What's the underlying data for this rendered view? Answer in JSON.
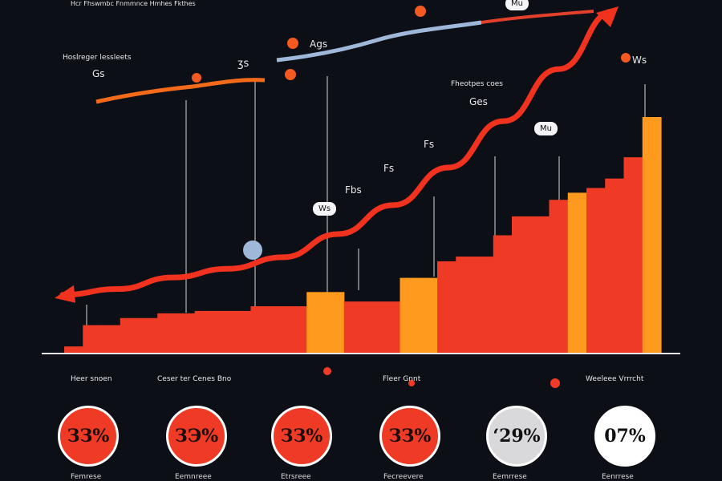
{
  "colors": {
    "background": "#0d0f17",
    "bar_red": "#ef3b26",
    "bar_orange": "#ff9a1f",
    "arrow": "#f0321e",
    "axis": "#e6e6e6"
  },
  "chart_data": {
    "type": "bar",
    "title": "",
    "xlabel": "",
    "ylabel": "",
    "grid": false,
    "legend": "none",
    "ylim": [
      0,
      100
    ],
    "values": [
      3,
      12,
      12,
      15,
      15,
      17,
      17,
      18,
      18,
      18,
      20,
      20,
      20,
      26,
      26,
      22,
      22,
      22,
      32,
      32,
      39,
      41,
      41,
      50,
      58,
      58,
      65,
      68,
      70,
      74,
      83,
      100
    ],
    "bar_colors": [
      "red",
      "red",
      "red",
      "red",
      "red",
      "red",
      "red",
      "red",
      "red",
      "red",
      "red",
      "red",
      "red",
      "orange",
      "orange",
      "red",
      "red",
      "red",
      "orange",
      "orange",
      "red",
      "red",
      "red",
      "red",
      "red",
      "red",
      "red",
      "orange",
      "red",
      "red",
      "red",
      "orange"
    ],
    "trend": {
      "type": "line",
      "values": [
        2,
        4,
        8,
        11,
        15,
        23,
        33,
        46,
        62,
        80,
        100
      ]
    }
  },
  "text": {
    "top_caption": "Hcr Fhswmbc Fnmmnce Hmhes Fkthes",
    "left_caption": "Hoslreger lessleets",
    "right_caption": "Fheotpes coes",
    "label_1": "Gs",
    "label_2": "ʒs",
    "label_3": "Ags",
    "label_4": "Ges",
    "label_5": "Fs",
    "label_6": "Fs",
    "label_7": "Fbs",
    "label_8": "Ws",
    "bubble_1": "Mu",
    "bubble_2": "Ws",
    "bubble_3": "Mu",
    "cat_1": "Heer snoen",
    "cat_2": "Ceser ter Cenes Bno",
    "cat_3": "Fleer Gnnt",
    "cat_4": "Weeleee Vrrrcht",
    "pct_1": "ЗЗ%",
    "pct_2": "ЗЭ%",
    "pct_3": "ЗЗ%",
    "pct_4": "ЗЗ%",
    "pct_5": "ʻ29%",
    "pct_6": "07%",
    "foot_1": "Femrese",
    "foot_2": "Eemnreee",
    "foot_3": "Etrsreee",
    "foot_4": "Fecreevere",
    "foot_5": "Eemrrese",
    "foot_6": "Eenrrese"
  }
}
